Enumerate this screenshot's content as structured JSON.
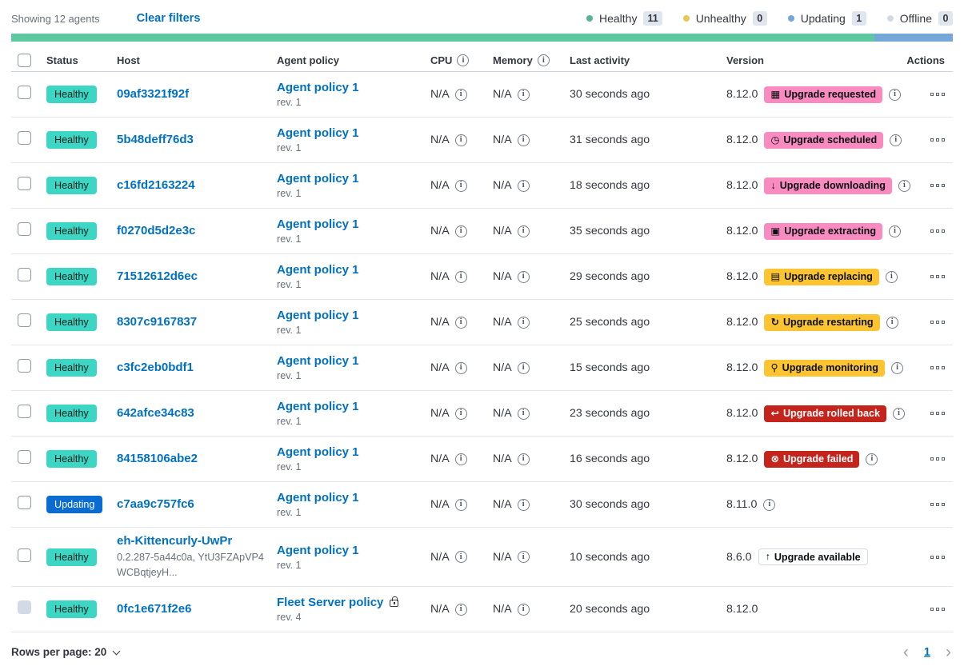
{
  "header": {
    "showing_text": "Showing 12 agents",
    "clear_filters_label": "Clear filters",
    "legend": [
      {
        "label": "Healthy",
        "count": "11",
        "color": "#54b399"
      },
      {
        "label": "Unhealthy",
        "count": "0",
        "color": "#e7c75a"
      },
      {
        "label": "Updating",
        "count": "1",
        "color": "#74a8d8"
      },
      {
        "label": "Offline",
        "count": "0",
        "color": "#d3dae6"
      }
    ],
    "status_bar_segments": [
      {
        "status": "healthy",
        "color": "#5dc9a1",
        "fraction": 0.9167
      },
      {
        "status": "updating",
        "color": "#74a8d8",
        "fraction": 0.0833
      }
    ]
  },
  "table": {
    "columns": [
      {
        "label": "Status",
        "info": false
      },
      {
        "label": "Host",
        "info": false
      },
      {
        "label": "Agent policy",
        "info": false
      },
      {
        "label": "CPU",
        "info": true
      },
      {
        "label": "Memory",
        "info": true
      },
      {
        "label": "Last activity",
        "info": false
      },
      {
        "label": "Version",
        "info": false
      },
      {
        "label": "Actions",
        "info": false
      }
    ],
    "rows": [
      {
        "status": "Healthy",
        "status_variant": "healthy",
        "host": "09af3321f92f",
        "host_meta": "",
        "policy": "Agent policy 1",
        "policy_lock": false,
        "rev": "rev. 1",
        "cpu": "N/A",
        "memory": "N/A",
        "last_activity": "30 seconds ago",
        "version": "8.12.0",
        "badge_label": "Upgrade requested",
        "badge_variant": "pink",
        "badge_icon": "calendar-icon",
        "info": true,
        "checkbox_disabled": false
      },
      {
        "status": "Healthy",
        "status_variant": "healthy",
        "host": "5b48deff76d3",
        "host_meta": "",
        "policy": "Agent policy 1",
        "policy_lock": false,
        "rev": "rev. 1",
        "cpu": "N/A",
        "memory": "N/A",
        "last_activity": "31 seconds ago",
        "version": "8.12.0",
        "badge_label": "Upgrade scheduled",
        "badge_variant": "pink",
        "badge_icon": "clock-icon",
        "info": true,
        "checkbox_disabled": false
      },
      {
        "status": "Healthy",
        "status_variant": "healthy",
        "host": "c16fd2163224",
        "host_meta": "",
        "policy": "Agent policy 1",
        "policy_lock": false,
        "rev": "rev. 1",
        "cpu": "N/A",
        "memory": "N/A",
        "last_activity": "18 seconds ago",
        "version": "8.12.0",
        "badge_label": "Upgrade downloading",
        "badge_variant": "pink",
        "badge_icon": "download-icon",
        "info": true,
        "checkbox_disabled": false
      },
      {
        "status": "Healthy",
        "status_variant": "healthy",
        "host": "f0270d5d2e3c",
        "host_meta": "",
        "policy": "Agent policy 1",
        "policy_lock": false,
        "rev": "rev. 1",
        "cpu": "N/A",
        "memory": "N/A",
        "last_activity": "35 seconds ago",
        "version": "8.12.0",
        "badge_label": "Upgrade extracting",
        "badge_variant": "pink",
        "badge_icon": "package-icon",
        "info": true,
        "checkbox_disabled": false
      },
      {
        "status": "Healthy",
        "status_variant": "healthy",
        "host": "71512612d6ec",
        "host_meta": "",
        "policy": "Agent policy 1",
        "policy_lock": false,
        "rev": "rev. 1",
        "cpu": "N/A",
        "memory": "N/A",
        "last_activity": "29 seconds ago",
        "version": "8.12.0",
        "badge_label": "Upgrade replacing",
        "badge_variant": "yellow",
        "badge_icon": "document-icon",
        "info": true,
        "checkbox_disabled": false
      },
      {
        "status": "Healthy",
        "status_variant": "healthy",
        "host": "8307c9167837",
        "host_meta": "",
        "policy": "Agent policy 1",
        "policy_lock": false,
        "rev": "rev. 1",
        "cpu": "N/A",
        "memory": "N/A",
        "last_activity": "25 seconds ago",
        "version": "8.12.0",
        "badge_label": "Upgrade restarting",
        "badge_variant": "yellow",
        "badge_icon": "refresh-icon",
        "info": true,
        "checkbox_disabled": false
      },
      {
        "status": "Healthy",
        "status_variant": "healthy",
        "host": "c3fc2eb0bdf1",
        "host_meta": "",
        "policy": "Agent policy 1",
        "policy_lock": false,
        "rev": "rev. 1",
        "cpu": "N/A",
        "memory": "N/A",
        "last_activity": "15 seconds ago",
        "version": "8.12.0",
        "badge_label": "Upgrade monitoring",
        "badge_variant": "yellow",
        "badge_icon": "inspect-icon",
        "info": true,
        "checkbox_disabled": false
      },
      {
        "status": "Healthy",
        "status_variant": "healthy",
        "host": "642afce34c83",
        "host_meta": "",
        "policy": "Agent policy 1",
        "policy_lock": false,
        "rev": "rev. 1",
        "cpu": "N/A",
        "memory": "N/A",
        "last_activity": "23 seconds ago",
        "version": "8.12.0",
        "badge_label": "Upgrade rolled back",
        "badge_variant": "red",
        "badge_icon": "return-icon",
        "info": true,
        "checkbox_disabled": false
      },
      {
        "status": "Healthy",
        "status_variant": "healthy",
        "host": "84158106abe2",
        "host_meta": "",
        "policy": "Agent policy 1",
        "policy_lock": false,
        "rev": "rev. 1",
        "cpu": "N/A",
        "memory": "N/A",
        "last_activity": "16 seconds ago",
        "version": "8.12.0",
        "badge_label": "Upgrade failed",
        "badge_variant": "red",
        "badge_icon": "error-icon",
        "info": true,
        "checkbox_disabled": false
      },
      {
        "status": "Updating",
        "status_variant": "updating",
        "host": "c7aa9c757fc6",
        "host_meta": "",
        "policy": "Agent policy 1",
        "policy_lock": false,
        "rev": "rev. 1",
        "cpu": "N/A",
        "memory": "N/A",
        "last_activity": "30 seconds ago",
        "version": "8.11.0",
        "badge_label": "",
        "badge_variant": "none",
        "badge_icon": "",
        "info": true,
        "checkbox_disabled": false
      },
      {
        "status": "Healthy",
        "status_variant": "healthy",
        "host": "eh-Kittencurly-UwPr",
        "host_meta": "0.2.287-5a44c0a, YtU3FZApVP4WCBqtjeyH...",
        "policy": "Agent policy 1",
        "policy_lock": false,
        "rev": "rev. 1",
        "cpu": "N/A",
        "memory": "N/A",
        "last_activity": "10 seconds ago",
        "version": "8.6.0",
        "badge_label": "Upgrade available",
        "badge_variant": "hollow",
        "badge_icon": "arrow-up-icon",
        "info": false,
        "checkbox_disabled": false
      },
      {
        "status": "Healthy",
        "status_variant": "healthy",
        "host": "0fc1e671f2e6",
        "host_meta": "",
        "policy": "Fleet Server policy",
        "policy_lock": true,
        "rev": "rev. 4",
        "cpu": "N/A",
        "memory": "N/A",
        "last_activity": "20 seconds ago",
        "version": "8.12.0",
        "badge_label": "",
        "badge_variant": "none",
        "badge_icon": "",
        "info": false,
        "checkbox_disabled": true
      }
    ]
  },
  "footer": {
    "rows_per_page_label": "Rows per page: 20",
    "page_number": "1"
  },
  "icons": {
    "calendar-icon": "▦",
    "clock-icon": "◷",
    "download-icon": "↓",
    "package-icon": "▣",
    "document-icon": "▤",
    "refresh-icon": "↻",
    "inspect-icon": "⚲",
    "return-icon": "↩",
    "error-icon": "⊗",
    "arrow-up-icon": "↑",
    "info-icon": "i",
    "chevron-left-icon": "‹",
    "chevron-right-icon": "›"
  },
  "colors": {
    "link": "#0071c2",
    "text": "#343741",
    "muted_text": "#69707d",
    "healthy_badge": "#3dd6c4",
    "updating_badge": "#0a6bd1",
    "pink_badge": "#fa8bc0",
    "yellow_badge": "#fdc431",
    "red_badge": "#c5241d"
  }
}
